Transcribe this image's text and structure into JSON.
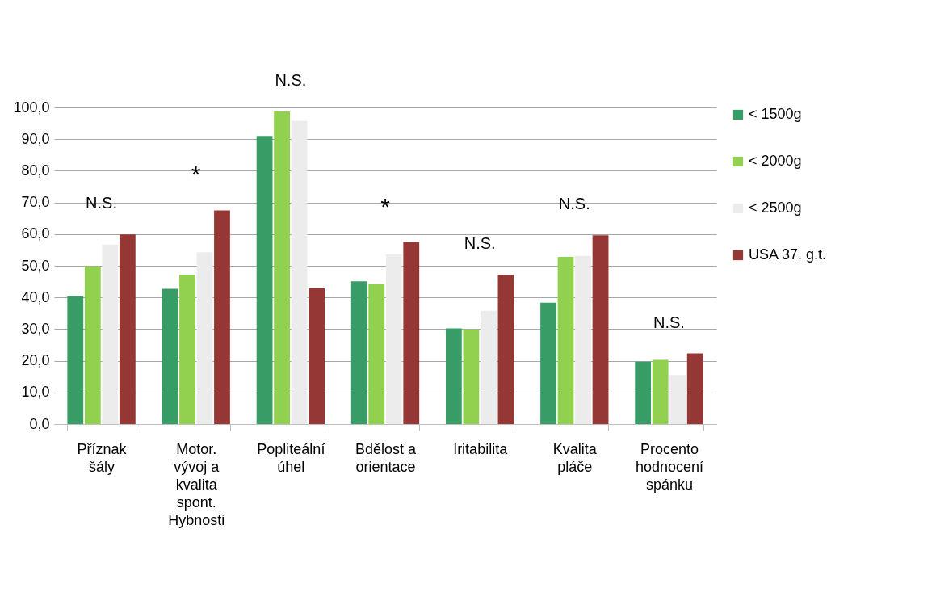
{
  "chart_data": {
    "type": "bar",
    "categories": [
      "Příznak\nšály",
      "Motor.\nvývoj a\nkvalita\nspont.\nHybnosti",
      "Popliteální\núhel",
      "Bdělost a\norientace",
      "Iritabilita",
      "Kvalita\npláče",
      "Procento\nhodnocení\nspánku"
    ],
    "series": [
      {
        "name": "< 1500g",
        "color": "#379c66",
        "values": [
          40.4,
          42.7,
          91.0,
          45.1,
          30.2,
          38.3,
          19.7
        ]
      },
      {
        "name": "< 2000g",
        "color": "#92d050",
        "values": [
          49.8,
          47.1,
          98.7,
          44.2,
          29.9,
          52.8,
          20.3
        ]
      },
      {
        "name": "< 2500g",
        "color": "#ececec",
        "values": [
          56.7,
          54.3,
          95.7,
          53.6,
          35.8,
          53.1,
          15.5
        ]
      },
      {
        "name": "USA 37. g.t.",
        "color": "#953735",
        "values": [
          59.9,
          67.5,
          42.9,
          57.5,
          47.1,
          59.6,
          22.3
        ]
      }
    ],
    "ylim": [
      0,
      100
    ],
    "yticks": [
      {
        "value": 0,
        "label": "0,0"
      },
      {
        "value": 10,
        "label": "10,0"
      },
      {
        "value": 20,
        "label": "20,0"
      },
      {
        "value": 30,
        "label": "30,0"
      },
      {
        "value": 40,
        "label": "40,0"
      },
      {
        "value": 50,
        "label": "50,0"
      },
      {
        "value": 60,
        "label": "60,0"
      },
      {
        "value": 70,
        "label": "70,0"
      },
      {
        "value": 80,
        "label": "80,0"
      },
      {
        "value": 90,
        "label": "90,0"
      },
      {
        "value": 100,
        "label": "100,0"
      }
    ],
    "grid": "y",
    "legend": "right",
    "annotations": [
      "N.S.",
      "*",
      "N.S.",
      "*",
      "N.S.",
      "N.S.",
      "N.S."
    ]
  }
}
